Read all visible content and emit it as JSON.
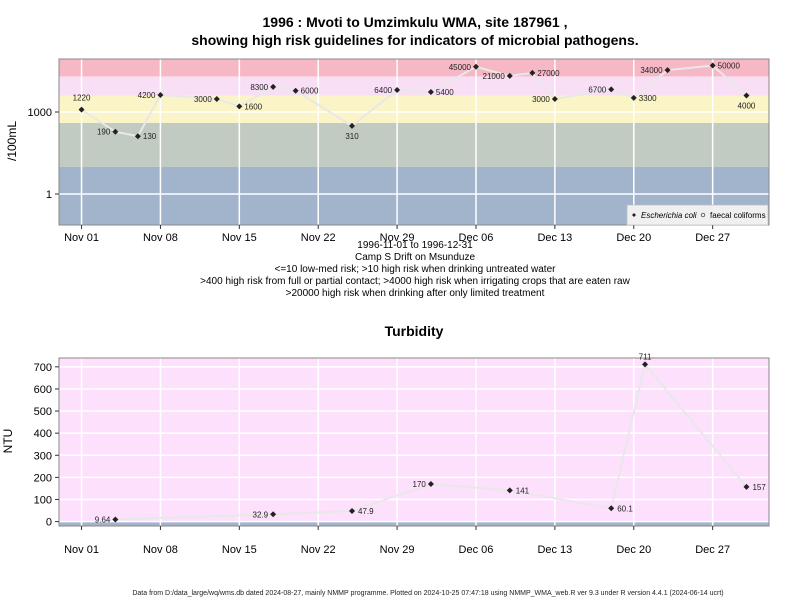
{
  "footer": "Data from D:/data_large/wq/wms.db dated 2024-08-27, mainly NMMP programme. Plotted on 2024-10-25 07:47:18 using NMMP_WMA_web.R ver 9.3 under R version 4.4.1 (2024-06-14 ucrt)",
  "colors": {
    "band_red": "#f7b8c6",
    "band_pink": "#f9dff5",
    "band_yellow": "#faf4c6",
    "band_green": "#c2cbc2",
    "band_blue": "#a2b4cc",
    "turbidity_bg": "#fde0fc",
    "turbidity_base": "#a2b4cc",
    "line": "#e8e8e8",
    "point": "#222222"
  },
  "chart_data": [
    {
      "type": "line",
      "title_line1": "1996 : Mvoti to Umzimkulu WMA, site 187961 ,",
      "title_line2": "showing high risk guidelines for indicators of microbial pathogens.",
      "ylabel": "/100mL",
      "y_scale": "log",
      "y_ticks": [
        "1",
        "1000"
      ],
      "x_ticks": [
        "Nov 01",
        "Nov 08",
        "Nov 15",
        "Nov 22",
        "Nov 29",
        "Dec 06",
        "Dec 13",
        "Dec 20",
        "Dec 27"
      ],
      "subtitle": [
        "1996-11-01 to 1996-12-31",
        "Camp S Drift on Msunduze",
        "<=10 low-med risk; >10 high risk when drinking untreated water",
        ">400 high risk from full or partial contact; >4000 high risk when irrigating crops that are eaten raw",
        ">20000 high risk when drinking after only limited treatment"
      ],
      "bands": [
        10,
        400,
        4000,
        20000
      ],
      "legend": [
        "Escherichia coli",
        "faecal coliforms"
      ],
      "legend_position": "bottom-right",
      "x_range": [
        "1996-10-30",
        "1997-01-01"
      ],
      "series": [
        {
          "name": "Escherichia coli",
          "points": [
            {
              "x": "1996-11-01",
              "y": 1220,
              "label": "1220"
            },
            {
              "x": "1996-11-04",
              "y": 190,
              "label": "190"
            },
            {
              "x": "1996-11-06",
              "y": 130,
              "label": "130"
            },
            {
              "x": "1996-11-08",
              "y": 4200,
              "label": "4200"
            },
            {
              "x": "1996-11-13",
              "y": 3000,
              "label": "3000"
            },
            {
              "x": "1996-11-15",
              "y": 1600,
              "label": "1600"
            },
            {
              "x": "1996-11-18",
              "y": 8300,
              "label": "8300"
            },
            {
              "x": "1996-11-20",
              "y": 6000,
              "label": "6000"
            },
            {
              "x": "1996-11-25",
              "y": 310,
              "label": "310"
            },
            {
              "x": "1996-11-29",
              "y": 6400,
              "label": "6400"
            },
            {
              "x": "1996-12-02",
              "y": 5400,
              "label": "5400"
            },
            {
              "x": "1996-12-06",
              "y": 45000,
              "label": "45000"
            },
            {
              "x": "1996-12-09",
              "y": 21000,
              "label": "21000"
            },
            {
              "x": "1996-12-11",
              "y": 27000,
              "label": "27000"
            },
            {
              "x": "1996-12-13",
              "y": 3000,
              "label": "3000"
            },
            {
              "x": "1996-12-18",
              "y": 6700,
              "label": "6700"
            },
            {
              "x": "1996-12-20",
              "y": 3300,
              "label": "3300"
            },
            {
              "x": "1996-12-23",
              "y": 34000,
              "label": "34000"
            },
            {
              "x": "1996-12-27",
              "y": 50000,
              "label": "50000"
            },
            {
              "x": "1996-12-30",
              "y": 4000,
              "label": "4000"
            }
          ]
        }
      ]
    },
    {
      "type": "line",
      "title": "Turbidity",
      "ylabel": "NTU",
      "ylim": [
        -20,
        740
      ],
      "y_ticks": [
        0,
        100,
        200,
        300,
        400,
        500,
        600,
        700
      ],
      "x_ticks": [
        "Nov 01",
        "Nov 08",
        "Nov 15",
        "Nov 22",
        "Nov 29",
        "Dec 06",
        "Dec 13",
        "Dec 20",
        "Dec 27"
      ],
      "x_range": [
        "1996-10-30",
        "1997-01-01"
      ],
      "series": [
        {
          "name": "Turbidity",
          "points": [
            {
              "x": "1996-11-04",
              "y": 9.64,
              "label": "9.64"
            },
            {
              "x": "1996-11-18",
              "y": 32.9,
              "label": "32.9"
            },
            {
              "x": "1996-11-25",
              "y": 47.9,
              "label": "47.9"
            },
            {
              "x": "1996-12-02",
              "y": 170,
              "label": "170"
            },
            {
              "x": "1996-12-09",
              "y": 141,
              "label": "141"
            },
            {
              "x": "1996-12-18",
              "y": 60.1,
              "label": "60.1"
            },
            {
              "x": "1996-12-21",
              "y": 711,
              "label": "711"
            },
            {
              "x": "1996-12-30",
              "y": 157,
              "label": "157"
            }
          ]
        }
      ]
    }
  ]
}
